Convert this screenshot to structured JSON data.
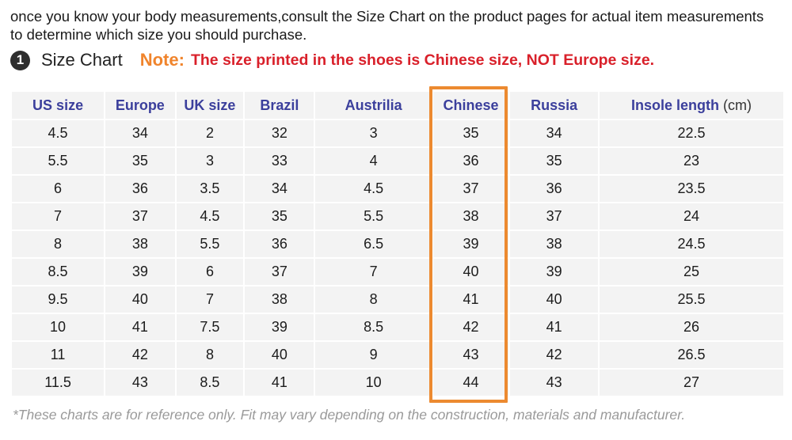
{
  "intro": {
    "line1": "once you know your body measurements,consult the Size Chart on the product pages for actual item measurements",
    "line2": "to determine which size you should purchase."
  },
  "heading": {
    "step_number": "1",
    "title": "Size Chart",
    "note_label": "Note:",
    "note_text": "The size printed in the shoes is Chinese size, NOT Europe size.",
    "note_label_color": "#f0842c",
    "note_text_color": "#d9202a"
  },
  "table": {
    "headers": [
      "US size",
      "Europe",
      "UK size",
      "Brazil",
      "Austrilia",
      "Chinese",
      "Russia",
      "Insole length"
    ],
    "insole_unit": "(cm)",
    "rows": [
      [
        "4.5",
        "34",
        "2",
        "32",
        "3",
        "35",
        "34",
        "22.5"
      ],
      [
        "5.5",
        "35",
        "3",
        "33",
        "4",
        "36",
        "35",
        "23"
      ],
      [
        "6",
        "36",
        "3.5",
        "34",
        "4.5",
        "37",
        "36",
        "23.5"
      ],
      [
        "7",
        "37",
        "4.5",
        "35",
        "5.5",
        "38",
        "37",
        "24"
      ],
      [
        "8",
        "38",
        "5.5",
        "36",
        "6.5",
        "39",
        "38",
        "24.5"
      ],
      [
        "8.5",
        "39",
        "6",
        "37",
        "7",
        "40",
        "39",
        "25"
      ],
      [
        "9.5",
        "40",
        "7",
        "38",
        "8",
        "41",
        "40",
        "25.5"
      ],
      [
        "10",
        "41",
        "7.5",
        "39",
        "8.5",
        "42",
        "41",
        "26"
      ],
      [
        "11",
        "42",
        "8",
        "40",
        "9",
        "43",
        "42",
        "26.5"
      ],
      [
        "11.5",
        "43",
        "8.5",
        "41",
        "10",
        "44",
        "43",
        "27"
      ]
    ],
    "highlighted_column": "Chinese",
    "highlight_color": "#ec8a30",
    "header_color": "#3b3f9c",
    "cell_background": "#f3f3f3"
  },
  "footnote": "*These charts are for reference only. Fit may vary depending on the construction, materials and manufacturer."
}
